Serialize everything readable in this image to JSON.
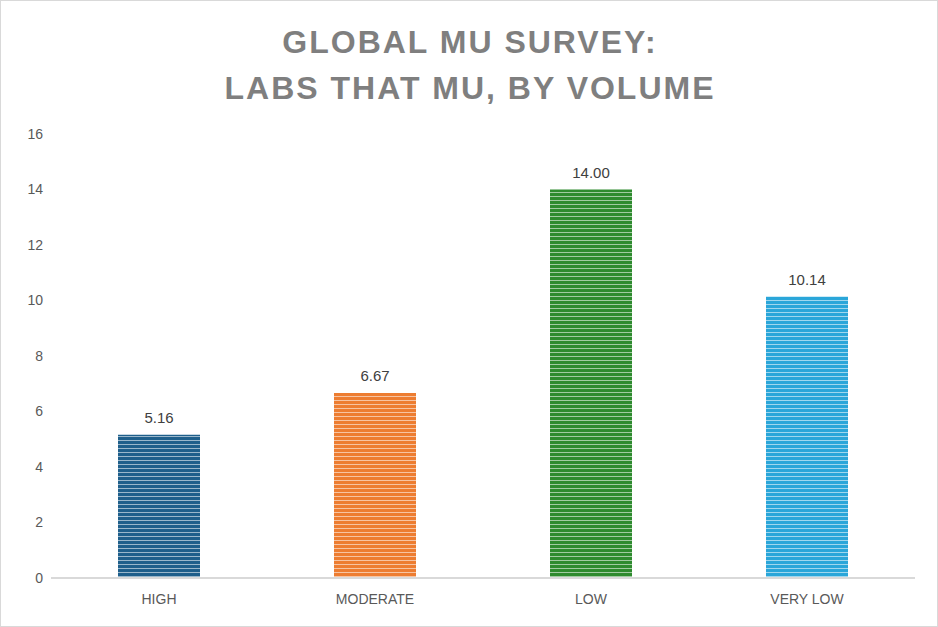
{
  "chart_data": {
    "type": "bar",
    "title": "GLOBAL MU SURVEY:\nLABS THAT MU, BY VOLUME",
    "categories": [
      "HIGH",
      "MODERATE",
      "LOW",
      "VERY LOW"
    ],
    "values": [
      5.16,
      6.67,
      14.0,
      10.14
    ],
    "value_labels": [
      "5.16",
      "6.67",
      "14.00",
      "10.14"
    ],
    "colors": [
      "#1f5f8b",
      "#ed7d31",
      "#2e8b2e",
      "#2aa6d9"
    ],
    "ylim": [
      0,
      16
    ],
    "yticks": [
      0,
      2,
      4,
      6,
      8,
      10,
      12,
      14,
      16
    ],
    "grid": false,
    "data_labels": true
  }
}
